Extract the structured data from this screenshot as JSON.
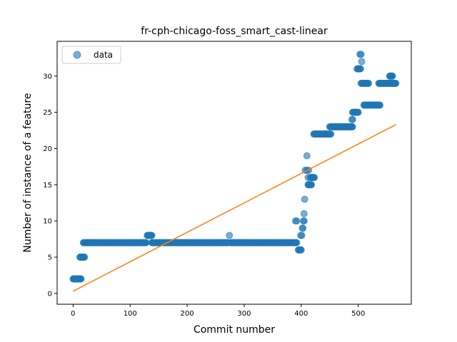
{
  "chart_data": {
    "type": "scatter",
    "title": "fr-cph-chicago-foss_smart_cast-linear",
    "xlabel": "Commit number",
    "ylabel": "Number of instance of a feature",
    "xlim": [
      -28,
      593
    ],
    "ylim": [
      -1.5,
      34.8
    ],
    "xticks": [
      0,
      100,
      200,
      300,
      400,
      500
    ],
    "yticks": [
      0,
      5,
      10,
      15,
      20,
      25,
      30
    ],
    "grid": false,
    "legend": {
      "position": "top-left",
      "entries": [
        "data"
      ]
    },
    "colors": {
      "data": "#1f77b4",
      "fit": "#ff7f0e"
    },
    "series": [
      {
        "name": "data",
        "kind": "scatter",
        "segments": [
          {
            "x_start": 0,
            "x_end": 14,
            "y": 2
          },
          {
            "x_start": 12,
            "x_end": 20,
            "y": 5
          },
          {
            "x_start": 18,
            "x_end": 128,
            "y": 7
          },
          {
            "x_start": 130,
            "x_end": 138,
            "y": 8
          },
          {
            "x_start": 138,
            "x_end": 272,
            "y": 7
          },
          {
            "x_start": 276,
            "x_end": 392,
            "y": 7
          },
          {
            "x_start": 395,
            "x_end": 400,
            "y": 6
          },
          {
            "x_start": 412,
            "x_end": 418,
            "y": 15
          },
          {
            "x_start": 416,
            "x_end": 423,
            "y": 16
          },
          {
            "x_start": 422,
            "x_end": 452,
            "y": 22
          },
          {
            "x_start": 450,
            "x_end": 490,
            "y": 23
          },
          {
            "x_start": 490,
            "x_end": 500,
            "y": 25
          },
          {
            "x_start": 498,
            "x_end": 504,
            "y": 31
          },
          {
            "x_start": 505,
            "x_end": 518,
            "y": 29
          },
          {
            "x_start": 510,
            "x_end": 538,
            "y": 26
          },
          {
            "x_start": 536,
            "x_end": 566,
            "y": 29
          },
          {
            "x_start": 555,
            "x_end": 560,
            "y": 30
          }
        ],
        "points": [
          [
            274,
            8
          ],
          [
            390,
            10
          ],
          [
            392,
            10
          ],
          [
            399,
            8
          ],
          [
            401,
            8
          ],
          [
            402,
            9
          ],
          [
            403,
            9
          ],
          [
            404,
            10
          ],
          [
            405,
            10
          ],
          [
            405,
            11
          ],
          [
            406,
            13
          ],
          [
            407,
            17
          ],
          [
            410,
            17
          ],
          [
            410,
            19
          ],
          [
            412,
            16
          ],
          [
            413,
            17
          ],
          [
            489,
            24
          ],
          [
            490,
            24
          ],
          [
            503,
            33
          ],
          [
            505,
            33
          ],
          [
            506,
            32
          ]
        ]
      },
      {
        "name": "",
        "kind": "line",
        "x": [
          0,
          566
        ],
        "y": [
          0.3,
          23.3
        ]
      }
    ]
  }
}
